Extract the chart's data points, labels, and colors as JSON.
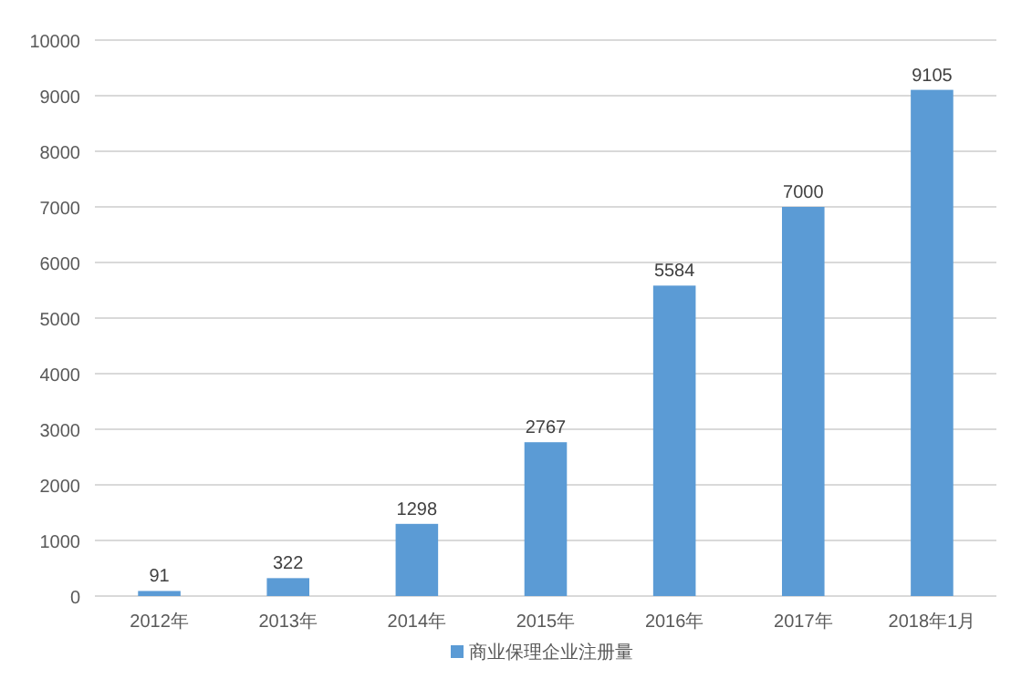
{
  "chart_data": {
    "type": "bar",
    "categories": [
      "2012年",
      "2013年",
      "2014年",
      "2015年",
      "2016年",
      "2017年",
      "2018年1月"
    ],
    "series": [
      {
        "name": "商业保理企业注册量",
        "color": "#5b9bd5",
        "values": [
          91,
          322,
          1298,
          2767,
          5584,
          7000,
          9105
        ]
      }
    ],
    "ylim": [
      0,
      10000
    ],
    "yticks": [
      0,
      1000,
      2000,
      3000,
      4000,
      5000,
      6000,
      7000,
      8000,
      9000,
      10000
    ],
    "grid": "y",
    "legend": "bottom",
    "data_labels": true
  }
}
